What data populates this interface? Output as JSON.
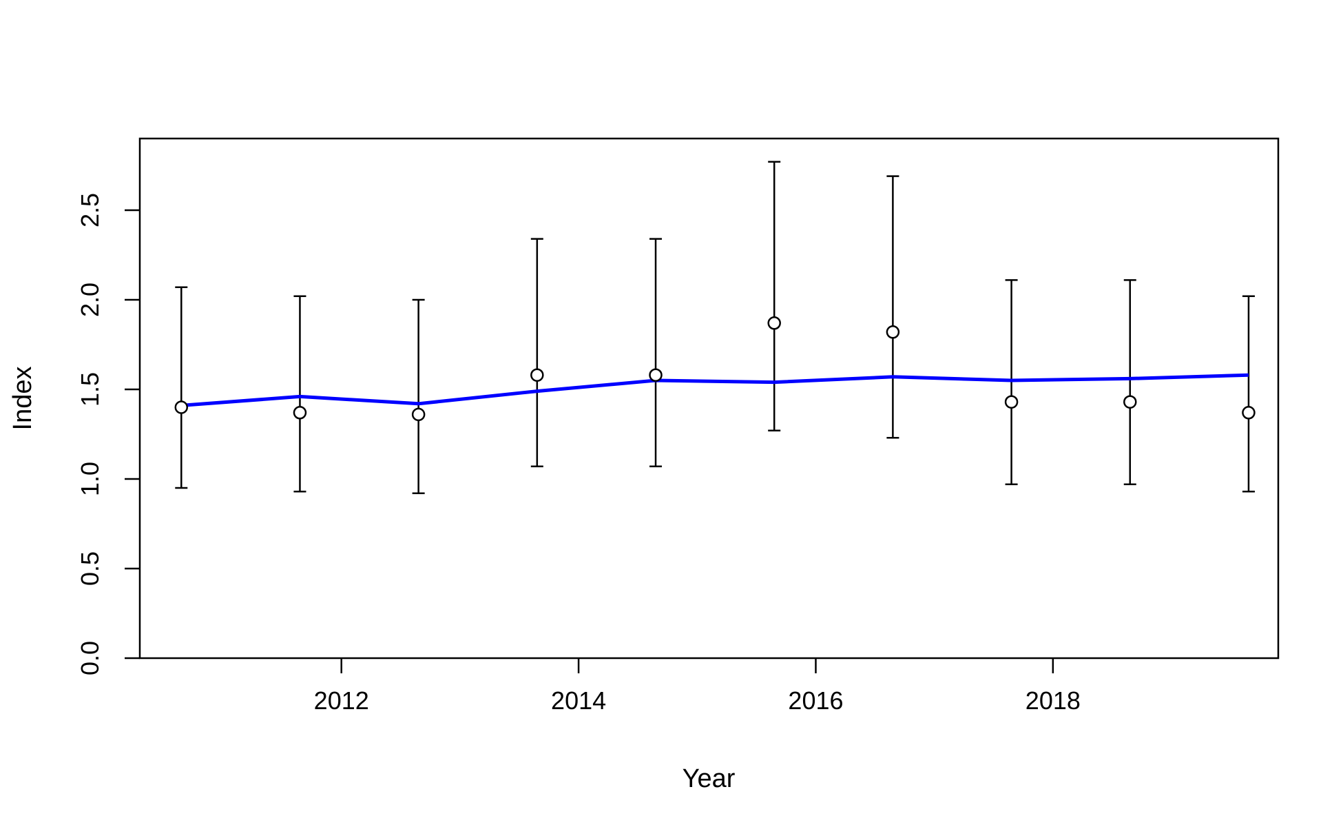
{
  "chart_data": {
    "type": "scatter",
    "title": "",
    "xlabel": "Year",
    "ylabel": "Index",
    "xlim": [
      2010.3,
      2019.9
    ],
    "ylim": [
      0,
      2.9
    ],
    "grid": false,
    "x_ticks": [
      2012,
      2014,
      2016,
      2018
    ],
    "x_tick_labels": [
      "2012",
      "2014",
      "2016",
      "2018"
    ],
    "y_ticks": [
      0,
      0.5,
      1,
      1.5,
      2,
      2.5
    ],
    "y_tick_labels": [
      "0.0",
      "0.5",
      "1.0",
      "1.5",
      "2.0",
      "2.5"
    ],
    "observed": {
      "x": [
        2010.65,
        2011.65,
        2012.65,
        2013.65,
        2014.65,
        2015.65,
        2016.65,
        2017.65,
        2018.65,
        2019.65
      ],
      "y": [
        1.4,
        1.37,
        1.36,
        1.58,
        1.58,
        1.87,
        1.82,
        1.43,
        1.43,
        1.37
      ],
      "lower": [
        0.95,
        0.93,
        0.92,
        1.07,
        1.07,
        1.27,
        1.23,
        0.97,
        0.97,
        0.93
      ],
      "upper": [
        2.07,
        2.02,
        2.0,
        2.34,
        2.34,
        2.77,
        2.69,
        2.11,
        2.11,
        2.02
      ]
    },
    "fitted": {
      "x": [
        2010.65,
        2011.65,
        2012.65,
        2013.65,
        2014.65,
        2015.65,
        2016.65,
        2017.65,
        2018.65,
        2019.65
      ],
      "y": [
        1.41,
        1.46,
        1.42,
        1.49,
        1.55,
        1.54,
        1.57,
        1.55,
        1.56,
        1.58
      ],
      "color": "#0000ff"
    },
    "point_color": "#000000",
    "errorbar_color": "#000000"
  }
}
